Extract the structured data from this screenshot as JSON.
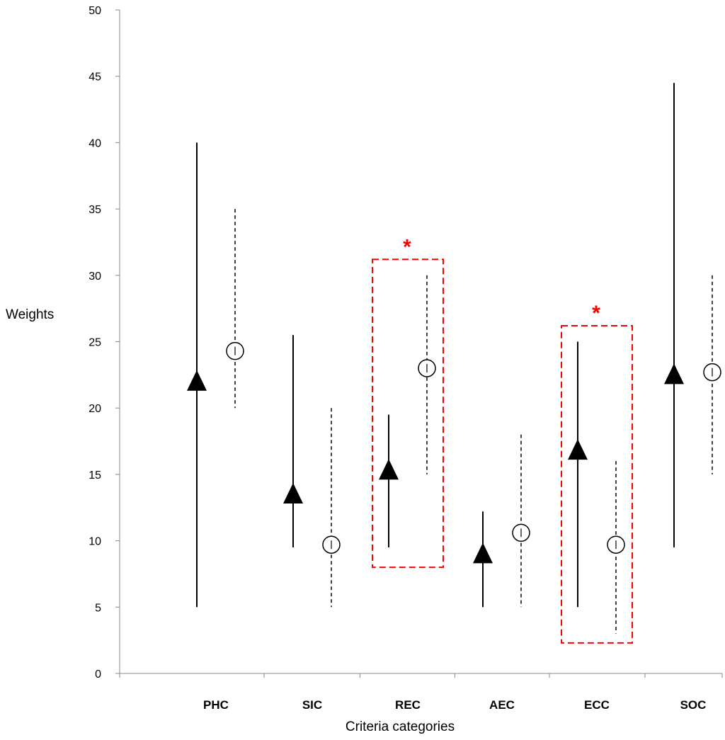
{
  "chart_data": {
    "type": "scatter",
    "title": "",
    "xlabel": "Criteria categories",
    "ylabel": "Weights",
    "ylim": [
      0,
      50
    ],
    "yticks": [
      "0",
      "5",
      "10",
      "15",
      "20",
      "25",
      "30",
      "35",
      "40",
      "45",
      "50"
    ],
    "grid": false,
    "legend": "none",
    "categories": [
      "PHC",
      "SIC",
      "REC",
      "AEC",
      "ECC",
      "SOC"
    ],
    "series": [
      {
        "marker": "filled-triangle",
        "line_style": "solid",
        "points": [
          {
            "category": "PHC",
            "value": 22.0,
            "min": 5.0,
            "max": 40.0
          },
          {
            "category": "SIC",
            "value": 13.5,
            "min": 9.5,
            "max": 25.5
          },
          {
            "category": "REC",
            "value": 15.3,
            "min": 9.5,
            "max": 19.5
          },
          {
            "category": "AEC",
            "value": 9.0,
            "min": 5.0,
            "max": 12.2
          },
          {
            "category": "ECC",
            "value": 16.8,
            "min": 5.0,
            "max": 25.0
          },
          {
            "category": "SOC",
            "value": 22.5,
            "min": 9.5,
            "max": 44.5
          }
        ]
      },
      {
        "marker": "open-circle",
        "line_style": "dashed",
        "points": [
          {
            "category": "PHC",
            "value": 24.3,
            "min": 20.0,
            "max": 35.0
          },
          {
            "category": "SIC",
            "value": 9.7,
            "min": 5.0,
            "max": 20.0
          },
          {
            "category": "REC",
            "value": 23.0,
            "min": 15.0,
            "max": 30.0
          },
          {
            "category": "AEC",
            "value": 10.6,
            "min": 5.0,
            "max": 18.0
          },
          {
            "category": "ECC",
            "value": 9.7,
            "min": 3.0,
            "max": 16.0
          },
          {
            "category": "SOC",
            "value": 22.7,
            "min": 15.0,
            "max": 30.0
          }
        ]
      }
    ],
    "annotations": [
      {
        "category": "REC",
        "text": "*",
        "style": "red-dashed-box",
        "ymin": 8.0,
        "ymax": 31.2,
        "color": "#ff0000"
      },
      {
        "category": "ECC",
        "text": "*",
        "style": "red-dashed-box",
        "ymin": 2.3,
        "ymax": 26.2,
        "color": "#ff0000"
      }
    ],
    "colors": {
      "marks": "#000000",
      "highlight": "#ff0000"
    }
  }
}
